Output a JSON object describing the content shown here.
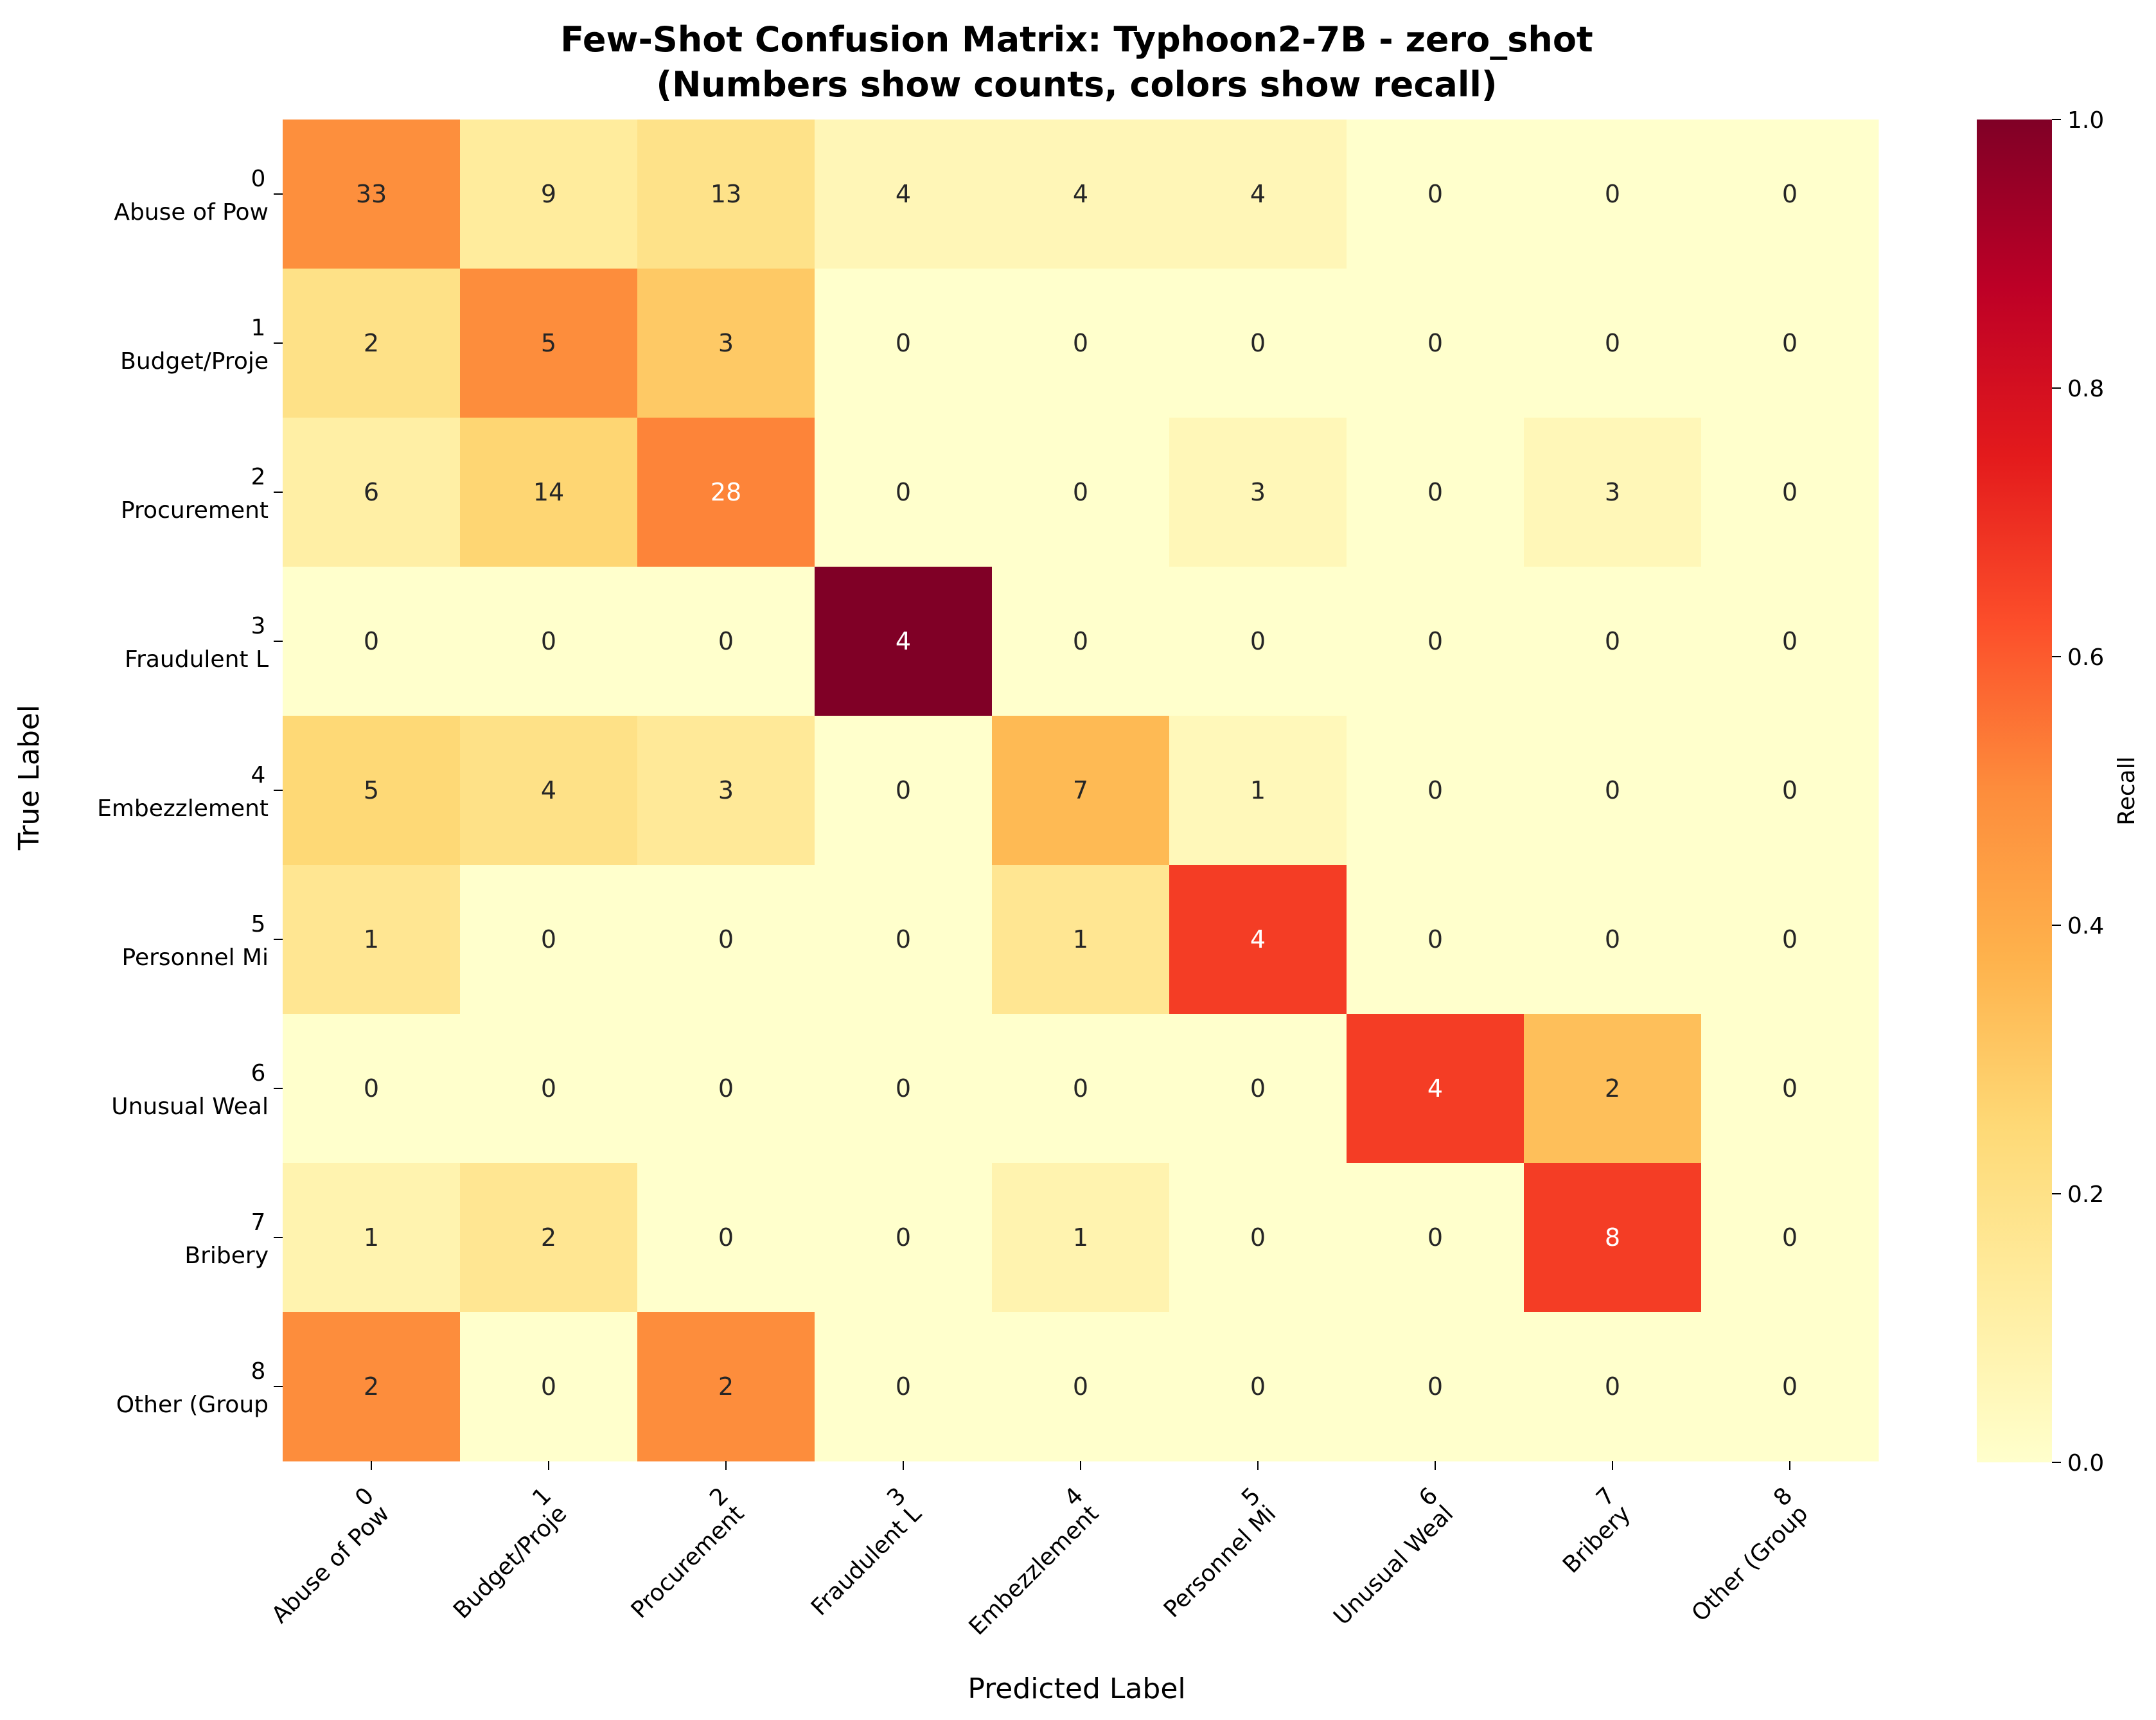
{
  "chart_data": {
    "type": "heatmap",
    "title_line1": "Few-Shot Confusion Matrix: Typhoon2-7B - zero_shot",
    "title_line2": "(Numbers show counts, colors show recall)",
    "xlabel": "Predicted Label",
    "ylabel": "True Label",
    "colorbar_label": "Recall",
    "colorbar_range": [
      0.0,
      1.0
    ],
    "colorbar_ticks": [
      "0.0",
      "0.2",
      "0.4",
      "0.6",
      "0.8",
      "1.0"
    ],
    "colormap": "YlOrRd",
    "tick_numbers": [
      "0",
      "1",
      "2",
      "3",
      "4",
      "5",
      "6",
      "7",
      "8"
    ],
    "tick_names": [
      "Abuse of Pow",
      "Budget/Proje",
      "Procurement",
      "Fraudulent L",
      "Embezzlement",
      "Personnel Mi",
      "Unusual Weal",
      "Bribery",
      "Other (Group"
    ],
    "counts": [
      [
        33,
        9,
        13,
        4,
        4,
        4,
        0,
        0,
        0
      ],
      [
        2,
        5,
        3,
        0,
        0,
        0,
        0,
        0,
        0
      ],
      [
        6,
        14,
        28,
        0,
        0,
        3,
        0,
        3,
        0
      ],
      [
        0,
        0,
        0,
        4,
        0,
        0,
        0,
        0,
        0
      ],
      [
        5,
        4,
        3,
        0,
        7,
        1,
        0,
        0,
        0
      ],
      [
        1,
        0,
        0,
        0,
        1,
        4,
        0,
        0,
        0
      ],
      [
        0,
        0,
        0,
        0,
        0,
        0,
        4,
        2,
        0
      ],
      [
        1,
        2,
        0,
        0,
        1,
        0,
        0,
        8,
        0
      ],
      [
        2,
        0,
        2,
        0,
        0,
        0,
        0,
        0,
        0
      ]
    ],
    "grid": false
  }
}
